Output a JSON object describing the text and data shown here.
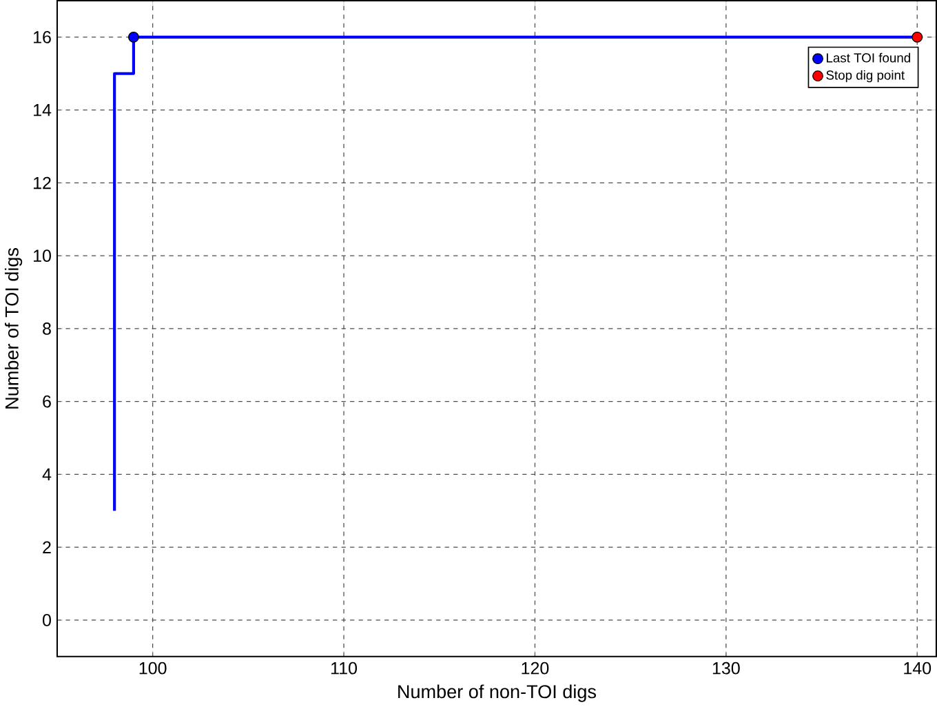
{
  "chart_data": {
    "type": "step",
    "xlabel": "Number of non-TOI digs",
    "ylabel": "Number of TOI digs",
    "xlim": [
      95,
      141
    ],
    "ylim": [
      -1,
      17
    ],
    "xticks": [
      100,
      110,
      120,
      130,
      140
    ],
    "yticks": [
      0,
      2,
      4,
      6,
      8,
      10,
      12,
      14,
      16
    ],
    "grid": true,
    "legend": "top right",
    "series": [
      {
        "color": "#0000ff",
        "x": [
          98,
          98,
          99,
          140
        ],
        "values": [
          3,
          15,
          16,
          16
        ]
      },
      {
        "type": "scatter",
        "name": "Last TOI found",
        "color": "#0000ff",
        "marker": "circle",
        "x": [
          99
        ],
        "values": [
          16
        ]
      },
      {
        "type": "scatter",
        "name": "Stop dig point",
        "color": "#ff0000",
        "marker": "circle",
        "x": [
          140
        ],
        "values": [
          16
        ]
      }
    ]
  }
}
